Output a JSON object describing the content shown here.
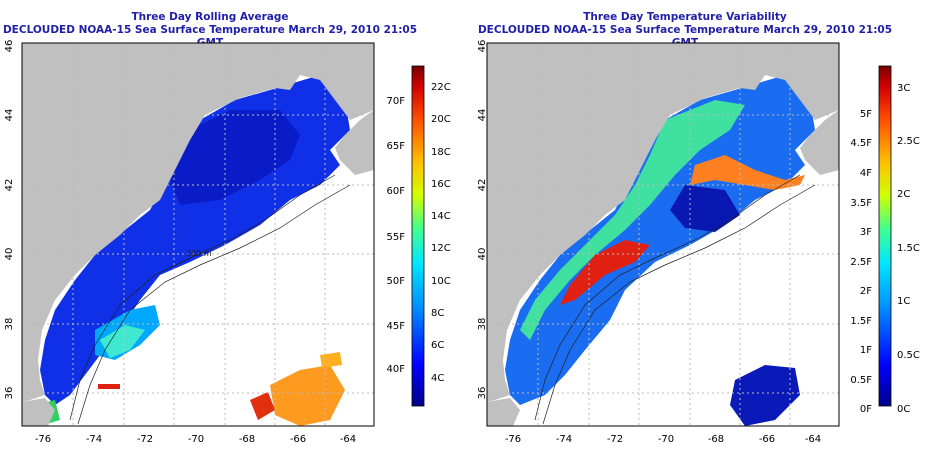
{
  "panels": [
    {
      "title": "Three Day Rolling Average",
      "subtitle": "DECLOUDED NOAA-15 Sea Surface Temperature March 29, 2010 21:05 GMT",
      "colorbar_c": [
        "4C",
        "6C",
        "8C",
        "10C",
        "12C",
        "14C",
        "16C",
        "18C",
        "20C",
        "22C"
      ],
      "colorbar_f": [
        "40F",
        "45F",
        "50F",
        "55F",
        "60F",
        "65F",
        "70F"
      ]
    },
    {
      "title": "Three Day Temperature Variability",
      "subtitle": "DECLOUDED NOAA-15 Sea Surface Temperature March 29, 2010 21:05 GMT",
      "colorbar_c": [
        "0C",
        "0.5C",
        "1C",
        "1.5C",
        "2C",
        "2.5C",
        "3C"
      ],
      "colorbar_f": [
        "0F",
        "0.5F",
        "1F",
        "1.5F",
        "2F",
        "2.5F",
        "3F",
        "3.5F",
        "4F",
        "4.5F",
        "5F"
      ]
    }
  ],
  "axes": {
    "lon_ticks": [
      "-76",
      "-74",
      "-72",
      "-70",
      "-68",
      "-66",
      "-64"
    ],
    "lat_ticks": [
      "36",
      "38",
      "40",
      "42",
      "44",
      "46"
    ],
    "lon_range": [
      -77,
      -63
    ],
    "lat_range": [
      35,
      46
    ]
  },
  "map_annotations": {
    "isobath_label": "200 m"
  },
  "colors": {
    "land": "#c0c0c0",
    "title": "#1f1fa8",
    "ramp": [
      "#00008a",
      "#0000ff",
      "#0096ff",
      "#00e6ff",
      "#40ff90",
      "#d2ff00",
      "#ffbe00",
      "#ff5000",
      "#d20000",
      "#780000"
    ]
  }
}
